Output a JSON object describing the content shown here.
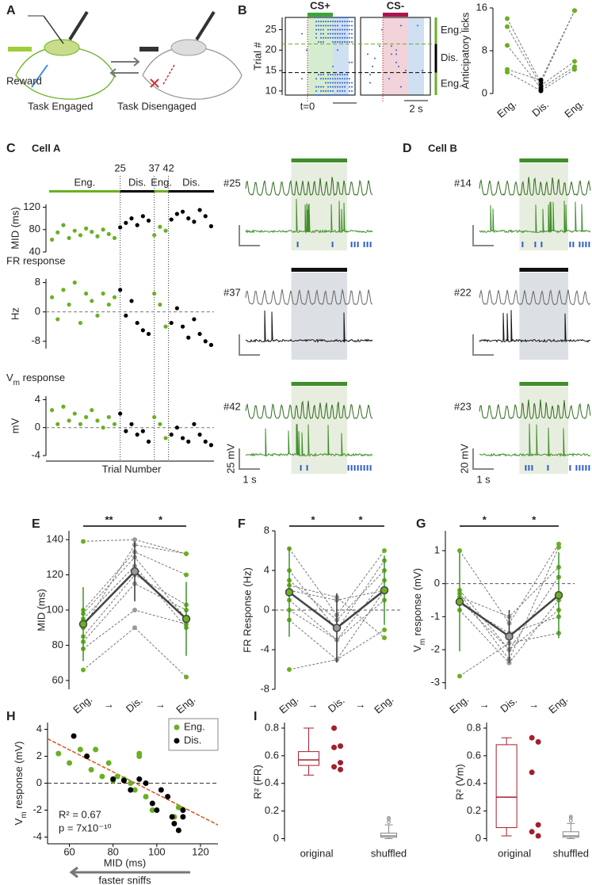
{
  "panel_labels": [
    "A",
    "B",
    "C",
    "D",
    "E",
    "F",
    "G",
    "H",
    "I"
  ],
  "diagram": {
    "reward": "Reward",
    "engaged": "Task Engaged",
    "disengaged": "Task Disengaged",
    "reward_color": "#4a8fd6",
    "engaged_color": "#6ab023"
  },
  "traces": {
    "lick_color": "#2f5fc9",
    "cells": [
      {
        "title": "Cell A",
        "title_color": "#8c1d4f",
        "scale_labels": [
          "25 mV",
          "1 s"
        ],
        "sweeps": [
          {
            "label": "#25",
            "trace_color": "#2f6b1e",
            "spike_color": "#3f8f2a",
            "bar_color": "#3f8f2a",
            "shade": "#e8eedf",
            "engaged": true
          },
          {
            "label": "#37",
            "trace_color": "#666666",
            "spike_color": "#111111",
            "bar_color": "#111111",
            "shade": "#dcdfe4",
            "engaged": false
          },
          {
            "label": "#42",
            "trace_color": "#2f6b1e",
            "spike_color": "#3f8f2a",
            "bar_color": "#3f8f2a",
            "shade": "#e8eedf",
            "engaged": true
          }
        ]
      },
      {
        "title": "Cell B",
        "title_color": "#1f2a78",
        "scale_labels": [
          "20 mV",
          "1 s"
        ],
        "sweeps": [
          {
            "label": "#14",
            "trace_color": "#2f6b1e",
            "spike_color": "#3f8f2a",
            "bar_color": "#3f8f2a",
            "shade": "#e8eedf",
            "engaged": true
          },
          {
            "label": "#22",
            "trace_color": "#666666",
            "spike_color": "#111111",
            "bar_color": "#111111",
            "shade": "#dcdfe4",
            "engaged": false
          },
          {
            "label": "#23",
            "trace_color": "#2f6b1e",
            "spike_color": "#3f8f2a",
            "bar_color": "#3f8f2a",
            "shade": "#e8eedf",
            "engaged": true
          }
        ]
      }
    ]
  },
  "chart_data": [
    {
      "type": "raster",
      "ylabel": "Trial #",
      "ylim": [
        9,
        28
      ],
      "yticks": [
        10,
        15,
        20,
        25
      ],
      "boundaries": [
        14.5,
        21.5
      ],
      "conditions": [
        {
          "name": "CS+",
          "color": "#3aa635",
          "shade": "#d6ecd0"
        },
        {
          "name": "CS-",
          "color": "#b0124f",
          "shade": "#f2d3da"
        }
      ],
      "response_shade": "#cfe0f2",
      "lick_color": "#2f5fc9",
      "epochs": [
        {
          "label": "Eng.",
          "color": "#6ab023"
        },
        {
          "label": "Dis.",
          "color": "#000000"
        },
        {
          "label": "Eng.",
          "color": "#6ab023"
        }
      ],
      "onset_label": "t=0",
      "scale_label": "2 s"
    },
    {
      "type": "paired",
      "ylabel": "Anticipatory licks",
      "categories": [
        "Eng.",
        "Dis.",
        "Eng."
      ],
      "category_colors": [
        "#6ab023",
        "#000000",
        "#6ab023"
      ],
      "ylim": [
        0,
        16
      ],
      "yticks": [
        0,
        8,
        16
      ],
      "series": [
        {
          "values": [
            14,
            2,
            15.5
          ]
        },
        {
          "values": [
            12.5,
            1.5,
            6
          ]
        },
        {
          "values": [
            9,
            1,
            5
          ]
        },
        {
          "values": [
            4.5,
            2.5,
            15.5
          ]
        },
        {
          "values": [
            4,
            0.5,
            4.5
          ]
        }
      ]
    },
    {
      "type": "epoch_scatter",
      "xlabel": "Trial Number",
      "xlim": [
        0,
        58
      ],
      "markers": [
        25,
        37,
        42
      ],
      "epochs": [
        {
          "label": "Eng.",
          "color": "#6ab023"
        },
        {
          "label": "Dis.",
          "color": "#000000"
        },
        {
          "label": "Eng.",
          "color": "#6ab023"
        },
        {
          "label": "Dis.",
          "color": "#000000"
        }
      ],
      "x": [
        1,
        3,
        5,
        7,
        9,
        11,
        13,
        15,
        17,
        19,
        21,
        23,
        25,
        27,
        29,
        31,
        33,
        35,
        37,
        39,
        41,
        43,
        45,
        47,
        49,
        51,
        53,
        55,
        57
      ],
      "subplots": [
        {
          "ylabel": "MID (ms)",
          "ylim": [
            40,
            125
          ],
          "yticks": [
            40,
            80,
            120
          ],
          "zero_line": false,
          "values": [
            62,
            75,
            88,
            65,
            78,
            70,
            82,
            76,
            68,
            80,
            72,
            65,
            84,
            92,
            100,
            88,
            104,
            96,
            70,
            85,
            78,
            98,
            108,
            112,
            100,
            94,
            115,
            104,
            86
          ]
        },
        {
          "title": "FR response",
          "ylabel": "Hz",
          "ylim": [
            -10,
            9
          ],
          "yticks": [
            -8,
            0,
            8
          ],
          "zero_line": true,
          "values": [
            4,
            -2,
            6,
            2,
            8,
            -3,
            5,
            3,
            -1,
            5,
            2,
            4,
            6,
            -1,
            3,
            -3,
            -5,
            -6,
            5,
            2,
            -4,
            -3,
            1,
            -4,
            -7,
            -2,
            -6,
            -8,
            -9
          ]
        },
        {
          "title": [
            "V",
            "m",
            " response"
          ],
          "ylabel": "mV",
          "ylim": [
            -4,
            4.5
          ],
          "yticks": [
            -4,
            0,
            4
          ],
          "zero_line": true,
          "values": [
            2.5,
            0.5,
            3,
            1,
            2,
            0.5,
            1.5,
            2.5,
            1,
            0,
            1.5,
            0.5,
            2,
            -0.5,
            0.5,
            -1,
            -0.5,
            -2,
            1.5,
            0.5,
            -1.5,
            -1,
            0,
            -1.5,
            -2,
            0.5,
            -1,
            -2,
            -2.5
          ]
        }
      ]
    },
    {
      "type": "paired",
      "ylabel": "MID (ms)",
      "categories": [
        "Eng.",
        "Dis.",
        "Eng."
      ],
      "category_colors": [
        "#6ab023",
        "#999999",
        "#6ab023"
      ],
      "separator": "→",
      "ylim": [
        55,
        145
      ],
      "yticks": [
        60,
        80,
        100,
        120,
        140
      ],
      "series": [
        {
          "values": [
            139,
            140,
            132
          ]
        },
        {
          "values": [
            100,
            133,
            120
          ]
        },
        {
          "values": [
            90,
            137,
            132
          ]
        },
        {
          "values": [
            85,
            120,
            103
          ]
        },
        {
          "values": [
            82,
            115,
            100
          ]
        },
        {
          "values": [
            78,
            100,
            92
          ]
        },
        {
          "values": [
            98,
            130,
            95
          ]
        },
        {
          "values": [
            66,
            90,
            62
          ]
        },
        {
          "values": [
            95,
            125,
            90
          ]
        }
      ],
      "mean": [
        92,
        122,
        95
      ],
      "error": [
        21,
        17,
        21
      ],
      "mean_color": "#444444",
      "error_colors": [
        "#3f8f2a",
        "#333333",
        "#3f8f2a"
      ],
      "significance": [
        "**",
        "*"
      ]
    },
    {
      "type": "paired",
      "ylabel": "FR Response (Hz)",
      "categories": [
        "Eng.",
        "Dis.",
        "Eng."
      ],
      "category_colors": [
        "#6ab023",
        "#999999",
        "#6ab023"
      ],
      "separator": "→",
      "ylim": [
        -8,
        8
      ],
      "yticks": [
        -8,
        -4,
        0,
        4,
        8
      ],
      "zero_line": true,
      "series": [
        {
          "values": [
            6.2,
            -0.5,
            6
          ]
        },
        {
          "values": [
            4,
            -2,
            5
          ]
        },
        {
          "values": [
            3,
            -1,
            4
          ]
        },
        {
          "values": [
            2,
            1,
            2
          ]
        },
        {
          "values": [
            1,
            -3,
            1
          ]
        },
        {
          "values": [
            -1,
            -5,
            2
          ]
        },
        {
          "values": [
            -6,
            -5,
            -2
          ]
        },
        {
          "values": [
            0,
            -3,
            3
          ]
        },
        {
          "values": [
            2.5,
            1.3,
            -2.8
          ]
        }
      ],
      "mean": [
        1.8,
        -1.8,
        2
      ],
      "error": [
        4.5,
        3.5,
        3.5
      ],
      "mean_color": "#444444",
      "error_colors": [
        "#3f8f2a",
        "#333333",
        "#3f8f2a"
      ],
      "significance": [
        "*",
        "*"
      ]
    },
    {
      "type": "paired",
      "ylabel": [
        "V",
        "m",
        " response (mV)"
      ],
      "categories": [
        "Eng.",
        "Dis.",
        "Eng."
      ],
      "category_colors": [
        "#6ab023",
        "#999999",
        "#6ab023"
      ],
      "separator": "→",
      "ylim": [
        -3.2,
        1.6
      ],
      "yticks": [
        -3,
        -2,
        -1,
        0,
        1
      ],
      "zero_line": true,
      "series": [
        {
          "values": [
            1,
            -1.2,
            1.2
          ]
        },
        {
          "values": [
            -0.3,
            -2.3,
            1.1
          ]
        },
        {
          "values": [
            -0.5,
            -2,
            0.2
          ]
        },
        {
          "values": [
            -0.8,
            -2.4,
            -0.5
          ]
        },
        {
          "values": [
            -0.6,
            -1.5,
            -1
          ]
        },
        {
          "values": [
            -0.2,
            -2,
            -0.8
          ]
        },
        {
          "values": [
            -2.8,
            -1.8,
            -1.5
          ]
        },
        {
          "values": [
            -0.4,
            -1,
            0.5
          ]
        }
      ],
      "mean": [
        -0.55,
        -1.6,
        -0.35
      ],
      "error": [
        1.5,
        0.8,
        1.3
      ],
      "mean_color": "#444444",
      "error_colors": [
        "#3f8f2a",
        "#333333",
        "#3f8f2a"
      ],
      "significance": [
        "*",
        "*"
      ]
    },
    {
      "type": "scatter",
      "xlabel": "MID (ms)",
      "ylabel": [
        "V",
        "m",
        " response (mV)"
      ],
      "xlim": [
        50,
        128
      ],
      "xticks": [
        60,
        80,
        100,
        120
      ],
      "ylim": [
        -4.5,
        4.5
      ],
      "yticks": [
        -4,
        -2,
        0,
        2,
        4
      ],
      "zero_line": true,
      "legend": "upper right",
      "series": [
        {
          "name": "Eng.",
          "color": "#6ab023",
          "x": [
            55,
            60,
            65,
            70,
            72,
            75,
            78,
            80,
            82,
            85,
            88,
            90,
            92,
            92,
            95,
            98,
            108,
            110
          ],
          "y": [
            2.2,
            1.5,
            2.5,
            1,
            2.5,
            0.5,
            1.5,
            0.2,
            0.5,
            0.3,
            0,
            -0.5,
            2.2,
            2,
            -1,
            -2,
            -2.5,
            -1.8
          ]
        },
        {
          "name": "Dis.",
          "color": "#000000",
          "x": [
            62,
            68,
            80,
            85,
            88,
            92,
            95,
            98,
            100,
            102,
            105,
            107,
            108,
            110,
            112,
            112
          ],
          "y": [
            3.5,
            2,
            0.3,
            0.2,
            -0.5,
            0.3,
            0,
            -1.5,
            -2,
            -0.5,
            -1,
            -2.5,
            -3,
            -3.5,
            -2.5,
            -2
          ]
        }
      ],
      "fit": {
        "x": [
          50,
          128
        ],
        "y": [
          3.3,
          -3.1
        ],
        "color": "#d9541e"
      },
      "annotations": [
        "R² = 0.67",
        "p = 7x10⁻¹⁰"
      ],
      "annotation_color": "#c8501e",
      "arrow_label": "faster sniffs"
    },
    {
      "type": "box",
      "ylabel": "R² (FR)",
      "ylim": [
        -0.02,
        0.84
      ],
      "yticks": [
        0,
        0.2,
        0.4,
        0.6,
        0.8
      ],
      "categories": [
        "original",
        "shuffled"
      ],
      "category_colors": [
        "#a31f2d",
        "#888888"
      ],
      "boxes": [
        {
          "min": 0.46,
          "q1": 0.53,
          "median": 0.57,
          "q3": 0.63,
          "max": 0.8,
          "points": [
            0.8,
            0.67,
            0.66,
            0.55,
            0.52,
            0.5
          ]
        },
        {
          "min": 0,
          "q1": 0.01,
          "median": 0.02,
          "q3": 0.04,
          "max": 0.1,
          "outliers": [
            0.12,
            0.14,
            0.15
          ]
        }
      ]
    },
    {
      "type": "box",
      "ylabel": "R² (Vm)",
      "ylim": [
        -0.02,
        0.84
      ],
      "yticks": [
        0,
        0.2,
        0.4,
        0.6,
        0.8
      ],
      "categories": [
        "original",
        "shuffled"
      ],
      "category_colors": [
        "#a31f2d",
        "#888888"
      ],
      "boxes": [
        {
          "min": 0.02,
          "q1": 0.08,
          "median": 0.3,
          "q3": 0.68,
          "max": 0.73,
          "points": [
            0.73,
            0.7,
            0.48,
            0.1,
            0.05,
            0.02
          ]
        },
        {
          "min": 0,
          "q1": 0.01,
          "median": 0.02,
          "q3": 0.05,
          "max": 0.11,
          "outliers": [
            0.13,
            0.15,
            0.16
          ]
        }
      ]
    }
  ]
}
